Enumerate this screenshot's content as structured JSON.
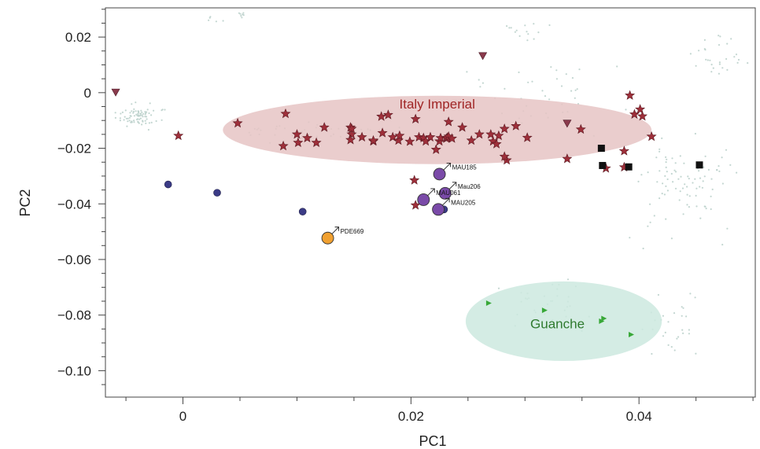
{
  "chart_data": {
    "type": "scatter",
    "title": "",
    "xlabel": "PC1",
    "ylabel": "PC2",
    "xlim": [
      -0.0068,
      0.0502
    ],
    "ylim": [
      -0.1095,
      0.0305
    ],
    "xticks": [
      0,
      0.02,
      0.04
    ],
    "yticks": [
      0.02,
      0,
      -0.02,
      -0.04,
      -0.06,
      -0.08,
      -0.1
    ],
    "xtick_labels": [
      "0",
      "0.02",
      "0.04"
    ],
    "ytick_labels": [
      "0.02",
      "0",
      "−0.02",
      "−0.04",
      "−0.06",
      "−0.08",
      "−0.10"
    ],
    "grid": false,
    "colors": {
      "background_points": "#b9cfc9",
      "italy_fill": "#e6c4c4",
      "guanche_fill": "#cde9df",
      "star": "#9e2f3a",
      "star_edge": "#5a1a22",
      "triangle_down": "#8a3a4c",
      "square": "#111111",
      "small_circle": "#3b3b86",
      "mau_circle": "#7a4aa8",
      "pde_circle": "#f0a030",
      "green_triangle": "#38a838",
      "italy_text": "#a02525",
      "guanche_text": "#2f7a2f"
    },
    "regions": [
      {
        "label": "Italy Imperial",
        "center": [
          0.0223,
          -0.0134
        ],
        "rx": 0.0188,
        "ry": 0.0123,
        "color_key": "italy_fill",
        "text_color_key": "italy_text"
      },
      {
        "label": "Guanche",
        "center": [
          0.0334,
          -0.0822
        ],
        "rx": 0.0086,
        "ry": 0.0143,
        "color_key": "guanche_fill",
        "text_color_key": "guanche_text"
      }
    ],
    "series": [
      {
        "marker": "star",
        "color_key": "star",
        "x": [
          0.0048,
          0.009,
          0.0088,
          0.01,
          0.0101,
          0.0109,
          0.0117,
          0.0124,
          0.0147,
          0.0148,
          0.0147,
          0.0148,
          0.0157,
          0.0167,
          0.0167,
          0.0174,
          0.0175,
          0.018,
          0.0184,
          0.0189,
          0.019,
          0.0199,
          0.0204,
          0.0207,
          0.0211,
          0.0213,
          0.0217,
          0.0222,
          0.0225,
          0.0226,
          0.0231,
          0.0232,
          0.0233,
          0.0233,
          0.0236,
          0.0245,
          0.0253,
          0.026,
          0.027,
          0.0272,
          0.0275,
          0.0277,
          0.0284,
          0.0282,
          0.0282,
          0.0292,
          0.0302,
          0.0337,
          0.0349,
          0.0371,
          0.0387,
          0.0392,
          0.0396,
          0.0401,
          0.0403,
          0.0411,
          -0.0004,
          0.0204,
          0.0203,
          0.0387
        ],
        "y": [
          -0.011,
          -0.0076,
          -0.0192,
          -0.015,
          -0.018,
          -0.0163,
          -0.018,
          -0.0125,
          -0.0125,
          -0.015,
          -0.017,
          -0.013,
          -0.016,
          -0.0175,
          -0.0172,
          -0.0086,
          -0.0145,
          -0.008,
          -0.016,
          -0.0172,
          -0.0155,
          -0.0176,
          -0.0095,
          -0.016,
          -0.0163,
          -0.0175,
          -0.016,
          -0.0205,
          -0.0175,
          -0.0163,
          -0.0165,
          -0.0162,
          -0.0105,
          -0.0158,
          -0.0165,
          -0.0125,
          -0.0172,
          -0.015,
          -0.015,
          -0.0175,
          -0.0185,
          -0.0155,
          -0.0243,
          -0.023,
          -0.013,
          -0.012,
          -0.0162,
          -0.0238,
          -0.0132,
          -0.0272,
          -0.021,
          -0.001,
          -0.0078,
          -0.006,
          -0.0085,
          -0.0158,
          -0.0155,
          -0.0405,
          -0.0315,
          -0.0268
        ]
      },
      {
        "marker": "triangle-down",
        "color_key": "triangle_down",
        "x": [
          -0.0059,
          0.0263,
          0.0337
        ],
        "y": [
          0.0002,
          0.0133,
          -0.011
        ]
      },
      {
        "marker": "square",
        "color_key": "square",
        "x": [
          0.0367,
          0.0368,
          0.0391,
          0.0453
        ],
        "y": [
          -0.02,
          -0.0262,
          -0.0267,
          -0.026
        ]
      },
      {
        "marker": "circle-small",
        "color_key": "small_circle",
        "x": [
          -0.0013,
          0.003,
          0.0105,
          0.0229
        ],
        "y": [
          -0.033,
          -0.036,
          -0.0428,
          -0.042
        ]
      },
      {
        "marker": "circle-large",
        "color_key": "mau_circle",
        "x": [
          0.0225,
          0.023,
          0.0211,
          0.0224
        ],
        "y": [
          -0.0293,
          -0.0362,
          -0.0385,
          -0.042
        ]
      },
      {
        "marker": "circle-large",
        "color_key": "pde_circle",
        "x": [
          0.0127
        ],
        "y": [
          -0.0523
        ]
      },
      {
        "marker": "triangle-right",
        "color_key": "green_triangle",
        "x": [
          0.0268,
          0.0317,
          0.0369,
          0.0367,
          0.0393
        ],
        "y": [
          -0.0757,
          -0.0783,
          -0.0812,
          -0.0822,
          -0.087
        ]
      }
    ],
    "annotations": [
      {
        "text": "MAU185",
        "x": 0.0225,
        "y": -0.0293
      },
      {
        "text": "Mau206",
        "x": 0.023,
        "y": -0.0362
      },
      {
        "text": "MAU061",
        "x": 0.0211,
        "y": -0.0385
      },
      {
        "text": "MAU205",
        "x": 0.0224,
        "y": -0.042
      },
      {
        "text": "PDE669",
        "x": 0.0127,
        "y": -0.0523
      }
    ]
  }
}
